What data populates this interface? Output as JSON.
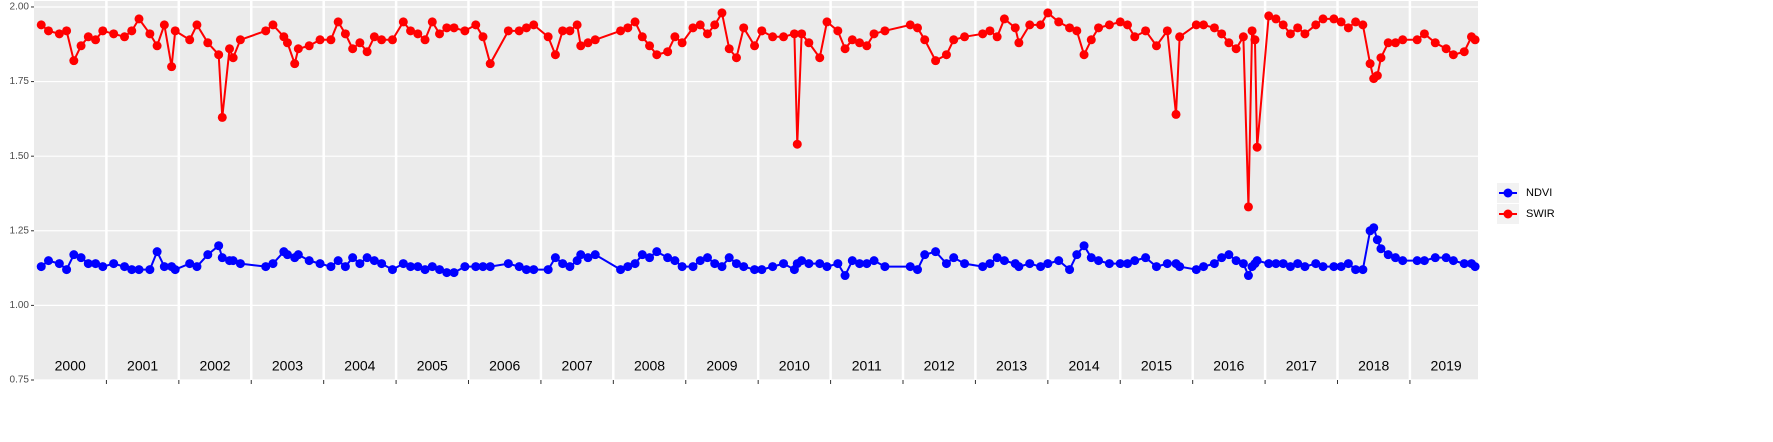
{
  "chart_data": {
    "type": "line",
    "x": [
      2000.1,
      2000.2,
      2000.35,
      2000.45,
      2000.55,
      2000.65,
      2000.75,
      2000.85,
      2000.95,
      2001.1,
      2001.25,
      2001.35,
      2001.45,
      2001.6,
      2001.7,
      2001.8,
      2001.9,
      2001.95,
      2002.15,
      2002.25,
      2002.4,
      2002.55,
      2002.6,
      2002.7,
      2002.75,
      2002.85,
      2003.2,
      2003.3,
      2003.45,
      2003.5,
      2003.6,
      2003.65,
      2003.8,
      2003.95,
      2004.1,
      2004.2,
      2004.3,
      2004.4,
      2004.5,
      2004.6,
      2004.7,
      2004.8,
      2004.95,
      2005.1,
      2005.2,
      2005.3,
      2005.4,
      2005.5,
      2005.6,
      2005.7,
      2005.8,
      2005.95,
      2006.1,
      2006.2,
      2006.3,
      2006.55,
      2006.7,
      2006.8,
      2006.9,
      2007.1,
      2007.2,
      2007.3,
      2007.4,
      2007.5,
      2007.55,
      2007.65,
      2007.75,
      2008.1,
      2008.2,
      2008.3,
      2008.4,
      2008.5,
      2008.6,
      2008.75,
      2008.85,
      2008.95,
      2009.1,
      2009.2,
      2009.3,
      2009.4,
      2009.5,
      2009.6,
      2009.7,
      2009.8,
      2009.95,
      2010.05,
      2010.2,
      2010.35,
      2010.5,
      2010.54,
      2010.6,
      2010.7,
      2010.85,
      2010.95,
      2011.1,
      2011.2,
      2011.3,
      2011.4,
      2011.5,
      2011.6,
      2011.75,
      2012.1,
      2012.2,
      2012.3,
      2012.45,
      2012.6,
      2012.7,
      2012.85,
      2013.1,
      2013.2,
      2013.3,
      2013.4,
      2013.55,
      2013.6,
      2013.75,
      2013.9,
      2014,
      2014.15,
      2014.3,
      2014.4,
      2014.5,
      2014.6,
      2014.7,
      2014.85,
      2015,
      2015.1,
      2015.2,
      2015.35,
      2015.5,
      2015.65,
      2015.77,
      2015.82,
      2016.05,
      2016.15,
      2016.3,
      2016.4,
      2016.5,
      2016.6,
      2016.7,
      2016.77,
      2016.82,
      2016.86,
      2016.89,
      2017.05,
      2017.15,
      2017.25,
      2017.35,
      2017.45,
      2017.55,
      2017.7,
      2017.8,
      2017.95,
      2018.05,
      2018.15,
      2018.25,
      2018.35,
      2018.45,
      2018.5,
      2018.55,
      2018.6,
      2018.7,
      2018.8,
      2018.9,
      2019.1,
      2019.2,
      2019.35,
      2019.5,
      2019.6,
      2019.75,
      2019.85,
      2019.9
    ],
    "series": [
      {
        "name": "NDVI",
        "color": "#0000ff",
        "values": [
          1.13,
          1.15,
          1.14,
          1.12,
          1.17,
          1.16,
          1.14,
          1.14,
          1.13,
          1.14,
          1.13,
          1.12,
          1.12,
          1.12,
          1.18,
          1.13,
          1.13,
          1.12,
          1.14,
          1.13,
          1.17,
          1.2,
          1.16,
          1.15,
          1.15,
          1.14,
          1.13,
          1.14,
          1.18,
          1.17,
          1.16,
          1.17,
          1.15,
          1.14,
          1.13,
          1.15,
          1.13,
          1.16,
          1.14,
          1.16,
          1.15,
          1.14,
          1.12,
          1.14,
          1.13,
          1.13,
          1.12,
          1.13,
          1.12,
          1.11,
          1.11,
          1.13,
          1.13,
          1.13,
          1.13,
          1.14,
          1.13,
          1.12,
          1.12,
          1.12,
          1.16,
          1.14,
          1.13,
          1.15,
          1.17,
          1.16,
          1.17,
          1.12,
          1.13,
          1.14,
          1.17,
          1.16,
          1.18,
          1.16,
          1.15,
          1.13,
          1.13,
          1.15,
          1.16,
          1.14,
          1.13,
          1.16,
          1.14,
          1.13,
          1.12,
          1.12,
          1.13,
          1.14,
          1.12,
          1.14,
          1.15,
          1.14,
          1.14,
          1.13,
          1.14,
          1.1,
          1.15,
          1.14,
          1.14,
          1.15,
          1.13,
          1.13,
          1.12,
          1.17,
          1.18,
          1.14,
          1.16,
          1.14,
          1.13,
          1.14,
          1.16,
          1.15,
          1.14,
          1.13,
          1.14,
          1.13,
          1.14,
          1.15,
          1.12,
          1.17,
          1.2,
          1.16,
          1.15,
          1.14,
          1.14,
          1.14,
          1.15,
          1.16,
          1.13,
          1.14,
          1.14,
          1.13,
          1.12,
          1.13,
          1.14,
          1.16,
          1.17,
          1.15,
          1.14,
          1.1,
          1.13,
          1.14,
          1.15,
          1.14,
          1.14,
          1.14,
          1.13,
          1.14,
          1.13,
          1.14,
          1.13,
          1.13,
          1.13,
          1.14,
          1.12,
          1.12,
          1.25,
          1.26,
          1.22,
          1.19,
          1.17,
          1.16,
          1.15,
          1.15,
          1.15,
          1.16,
          1.16,
          1.15,
          1.14,
          1.14,
          1.13
        ]
      },
      {
        "name": "SWIR",
        "color": "#ff0000",
        "values": [
          1.94,
          1.92,
          1.91,
          1.92,
          1.82,
          1.87,
          1.9,
          1.89,
          1.92,
          1.91,
          1.9,
          1.92,
          1.96,
          1.91,
          1.87,
          1.94,
          1.8,
          1.92,
          1.89,
          1.94,
          1.88,
          1.84,
          1.63,
          1.86,
          1.83,
          1.89,
          1.92,
          1.94,
          1.9,
          1.88,
          1.81,
          1.86,
          1.87,
          1.89,
          1.89,
          1.95,
          1.91,
          1.86,
          1.88,
          1.85,
          1.9,
          1.89,
          1.89,
          1.95,
          1.92,
          1.91,
          1.89,
          1.95,
          1.91,
          1.93,
          1.93,
          1.92,
          1.94,
          1.9,
          1.81,
          1.92,
          1.92,
          1.93,
          1.94,
          1.9,
          1.84,
          1.92,
          1.92,
          1.94,
          1.87,
          1.88,
          1.89,
          1.92,
          1.93,
          1.95,
          1.9,
          1.87,
          1.84,
          1.85,
          1.9,
          1.88,
          1.93,
          1.94,
          1.91,
          1.94,
          1.98,
          1.86,
          1.83,
          1.93,
          1.87,
          1.92,
          1.9,
          1.9,
          1.91,
          1.54,
          1.91,
          1.88,
          1.83,
          1.95,
          1.92,
          1.86,
          1.89,
          1.88,
          1.87,
          1.91,
          1.92,
          1.94,
          1.93,
          1.89,
          1.82,
          1.84,
          1.89,
          1.9,
          1.91,
          1.92,
          1.9,
          1.96,
          1.93,
          1.88,
          1.94,
          1.94,
          1.98,
          1.95,
          1.93,
          1.92,
          1.84,
          1.89,
          1.93,
          1.94,
          1.95,
          1.94,
          1.9,
          1.92,
          1.87,
          1.92,
          1.64,
          1.9,
          1.94,
          1.94,
          1.93,
          1.91,
          1.88,
          1.86,
          1.9,
          1.33,
          1.92,
          1.89,
          1.53,
          1.97,
          1.96,
          1.94,
          1.91,
          1.93,
          1.91,
          1.94,
          1.96,
          1.96,
          1.95,
          1.93,
          1.95,
          1.94,
          1.81,
          1.76,
          1.77,
          1.83,
          1.88,
          1.88,
          1.89,
          1.89,
          1.91,
          1.88,
          1.86,
          1.84,
          1.85,
          1.9,
          1.89
        ]
      }
    ],
    "xlim": [
      2000,
      2019.94
    ],
    "xticks": [
      {
        "value": 2000.5,
        "label": "2000"
      },
      {
        "value": 2001.5,
        "label": "2001"
      },
      {
        "value": 2002.5,
        "label": "2002"
      },
      {
        "value": 2003.5,
        "label": "2003"
      },
      {
        "value": 2004.5,
        "label": "2004"
      },
      {
        "value": 2005.5,
        "label": "2005"
      },
      {
        "value": 2006.5,
        "label": "2006"
      },
      {
        "value": 2007.5,
        "label": "2007"
      },
      {
        "value": 2008.5,
        "label": "2008"
      },
      {
        "value": 2009.5,
        "label": "2009"
      },
      {
        "value": 2010.5,
        "label": "2010"
      },
      {
        "value": 2011.5,
        "label": "2011"
      },
      {
        "value": 2012.5,
        "label": "2012"
      },
      {
        "value": 2013.5,
        "label": "2013"
      },
      {
        "value": 2014.5,
        "label": "2014"
      },
      {
        "value": 2015.5,
        "label": "2015"
      },
      {
        "value": 2016.5,
        "label": "2016"
      },
      {
        "value": 2017.5,
        "label": "2017"
      },
      {
        "value": 2018.5,
        "label": "2018"
      },
      {
        "value": 2019.5,
        "label": "2019"
      }
    ],
    "xgrid": [
      2001,
      2002,
      2003,
      2004,
      2005,
      2006,
      2007,
      2008,
      2009,
      2010,
      2011,
      2012,
      2013,
      2014,
      2015,
      2016,
      2017,
      2018,
      2019
    ],
    "ylim": [
      0.75,
      2.02
    ],
    "yticks": [
      {
        "value": 0.75,
        "label": "0.75"
      },
      {
        "value": 1,
        "label": "1.00"
      },
      {
        "value": 1.25,
        "label": "1.25"
      },
      {
        "value": 1.5,
        "label": "1.50"
      },
      {
        "value": 1.75,
        "label": "1.75"
      },
      {
        "value": 2,
        "label": "2.00"
      }
    ],
    "grid": true,
    "legend": "right"
  }
}
